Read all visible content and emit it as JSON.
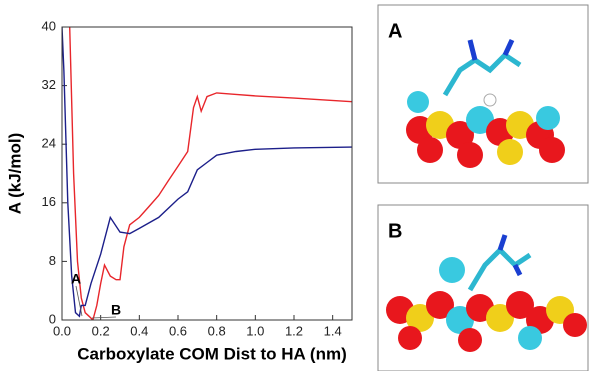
{
  "chart_data": {
    "type": "line",
    "ylabel": "A (kJ/mol)",
    "xlabel": "Carboxylate COM Dist to HA (nm)",
    "xlim": [
      0,
      1.5
    ],
    "xticks": [
      {
        "value": 0,
        "label": "0.0"
      },
      0.2,
      0.4,
      0.6,
      0.8,
      {
        "value": 1,
        "label": "1.0"
      },
      1.2,
      1.4
    ],
    "ylim": [
      0,
      40
    ],
    "yticks": [
      0,
      8,
      16,
      24,
      32,
      40
    ],
    "series": [
      {
        "color": "#e8262b",
        "x": [
          0.04,
          0.06,
          0.08,
          0.1,
          0.12,
          0.14,
          0.16,
          0.18,
          0.2,
          0.22,
          0.25,
          0.28,
          0.3,
          0.32,
          0.35,
          0.4,
          0.45,
          0.5,
          0.55,
          0.6,
          0.65,
          0.68,
          0.7,
          0.72,
          0.75,
          0.8,
          0.9,
          1.0,
          1.2,
          1.5
        ],
        "values": [
          40,
          20,
          8,
          3,
          1,
          0.5,
          0,
          2,
          5,
          7.5,
          6,
          5.5,
          5.5,
          10,
          13,
          14,
          15.5,
          17,
          19,
          21,
          23,
          29,
          30.5,
          28.5,
          30.5,
          31,
          30.8,
          30.6,
          30.3,
          29.8
        ]
      },
      {
        "color": "#1c1f8a",
        "x": [
          0,
          0.01,
          0.03,
          0.05,
          0.07,
          0.09,
          0.1,
          0.12,
          0.15,
          0.2,
          0.25,
          0.3,
          0.35,
          0.4,
          0.5,
          0.6,
          0.65,
          0.7,
          0.75,
          0.8,
          0.9,
          1.0,
          1.2,
          1.5
        ],
        "values": [
          40,
          34,
          16,
          6,
          1,
          0.5,
          2,
          2,
          5,
          9,
          14,
          12,
          11.8,
          12.5,
          14,
          16.5,
          17.5,
          20.5,
          21.5,
          22.5,
          23,
          23.3,
          23.5,
          23.6
        ]
      }
    ],
    "annotations": [
      {
        "text": "A"
      },
      {
        "text": "B"
      }
    ],
    "panels": [
      {
        "label": "A"
      },
      {
        "label": "B"
      }
    ]
  }
}
